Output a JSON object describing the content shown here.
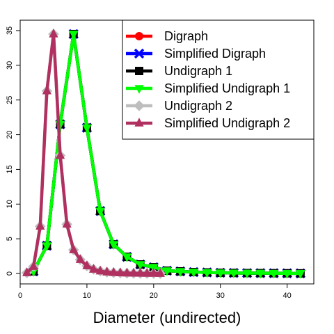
{
  "chart_data": {
    "type": "line",
    "title": "",
    "xlabel": "Diameter (undirected)",
    "ylabel": "",
    "xlim": [
      0,
      44
    ],
    "ylim": [
      -1.5,
      36.5
    ],
    "xticks": [
      0,
      10,
      20,
      30,
      40
    ],
    "yticks": [
      0,
      5,
      10,
      15,
      20,
      25,
      30,
      35
    ],
    "grid": false,
    "legend_position": "top-right",
    "series": [
      {
        "name": "Digraph",
        "color": "#ff0000",
        "marker": "circle",
        "points": [
          [
            2,
            0.3
          ],
          [
            4,
            4.0
          ],
          [
            6,
            21.5
          ],
          [
            8,
            34.5
          ],
          [
            10,
            21.0
          ],
          [
            12,
            9.0
          ],
          [
            14,
            4.2
          ],
          [
            16,
            2.4
          ],
          [
            18,
            1.3
          ],
          [
            20,
            0.9
          ],
          [
            22,
            0.4
          ],
          [
            24,
            0.3
          ],
          [
            26,
            0.2
          ],
          [
            28,
            0.15
          ],
          [
            30,
            0.1
          ],
          [
            32,
            0.08
          ],
          [
            34,
            0.06
          ],
          [
            36,
            0.05
          ],
          [
            38,
            0.04
          ],
          [
            40,
            0.03
          ],
          [
            42,
            0.02
          ]
        ]
      },
      {
        "name": "Simplified Digraph",
        "color": "#0000ff",
        "marker": "x",
        "points": [
          [
            2,
            0.3
          ],
          [
            4,
            4.0
          ],
          [
            6,
            21.5
          ],
          [
            8,
            34.5
          ],
          [
            10,
            21.0
          ],
          [
            12,
            9.0
          ],
          [
            14,
            4.2
          ],
          [
            16,
            2.4
          ],
          [
            18,
            1.3
          ],
          [
            20,
            0.9
          ],
          [
            22,
            0.4
          ],
          [
            24,
            0.3
          ],
          [
            26,
            0.2
          ],
          [
            28,
            0.15
          ],
          [
            30,
            0.1
          ],
          [
            32,
            0.08
          ],
          [
            34,
            0.06
          ],
          [
            36,
            0.05
          ],
          [
            38,
            0.04
          ],
          [
            40,
            0.03
          ],
          [
            42,
            0.02
          ]
        ]
      },
      {
        "name": "Undigraph 1",
        "color": "#000000",
        "marker": "square",
        "points": [
          [
            2,
            0.3
          ],
          [
            4,
            4.0
          ],
          [
            6,
            21.5
          ],
          [
            8,
            34.5
          ],
          [
            10,
            21.0
          ],
          [
            12,
            9.0
          ],
          [
            14,
            4.2
          ],
          [
            16,
            2.4
          ],
          [
            18,
            1.3
          ],
          [
            20,
            0.9
          ],
          [
            22,
            0.4
          ],
          [
            24,
            0.3
          ],
          [
            26,
            0.2
          ],
          [
            28,
            0.15
          ],
          [
            30,
            0.1
          ],
          [
            32,
            0.08
          ],
          [
            34,
            0.06
          ],
          [
            36,
            0.05
          ],
          [
            38,
            0.04
          ],
          [
            40,
            0.03
          ],
          [
            42,
            0.02
          ]
        ]
      },
      {
        "name": "Simplified Undigraph 1",
        "color": "#00ff00",
        "marker": "triangle-down",
        "points": [
          [
            2,
            0.3
          ],
          [
            4,
            4.0
          ],
          [
            6,
            21.5
          ],
          [
            8,
            34.5
          ],
          [
            10,
            21.0
          ],
          [
            12,
            9.0
          ],
          [
            14,
            4.2
          ],
          [
            16,
            2.4
          ],
          [
            18,
            1.3
          ],
          [
            20,
            0.9
          ],
          [
            22,
            0.4
          ],
          [
            24,
            0.3
          ],
          [
            26,
            0.2
          ],
          [
            28,
            0.15
          ],
          [
            30,
            0.1
          ],
          [
            32,
            0.08
          ],
          [
            34,
            0.06
          ],
          [
            36,
            0.05
          ],
          [
            38,
            0.04
          ],
          [
            40,
            0.03
          ],
          [
            42,
            0.02
          ]
        ]
      },
      {
        "name": "Undigraph 2",
        "color": "#bebebe",
        "marker": "diamond",
        "points": [
          [
            1,
            0.1
          ],
          [
            2,
            1.0
          ],
          [
            3,
            6.8
          ],
          [
            4,
            26.3
          ],
          [
            5,
            34.5
          ],
          [
            6,
            17.0
          ],
          [
            7,
            7.1
          ],
          [
            8,
            3.4
          ],
          [
            9,
            2.0
          ],
          [
            10,
            1.1
          ],
          [
            11,
            0.6
          ],
          [
            12,
            0.35
          ],
          [
            13,
            0.2
          ],
          [
            14,
            0.12
          ],
          [
            15,
            0.08
          ],
          [
            16,
            0.05
          ],
          [
            17,
            0.03
          ],
          [
            18,
            0.02
          ],
          [
            19,
            0.01
          ],
          [
            20,
            0.01
          ],
          [
            21,
            0.0
          ]
        ]
      },
      {
        "name": "Simplified Undigraph 2",
        "color": "#b03060",
        "marker": "triangle-up",
        "points": [
          [
            1,
            0.1
          ],
          [
            2,
            1.0
          ],
          [
            3,
            6.8
          ],
          [
            4,
            26.3
          ],
          [
            5,
            34.5
          ],
          [
            6,
            17.0
          ],
          [
            7,
            7.1
          ],
          [
            8,
            3.4
          ],
          [
            9,
            2.0
          ],
          [
            10,
            1.1
          ],
          [
            11,
            0.6
          ],
          [
            12,
            0.35
          ],
          [
            13,
            0.2
          ],
          [
            14,
            0.12
          ],
          [
            15,
            0.08
          ],
          [
            16,
            0.05
          ],
          [
            17,
            0.03
          ],
          [
            18,
            0.02
          ],
          [
            19,
            0.01
          ],
          [
            20,
            0.01
          ],
          [
            21,
            0.0
          ]
        ]
      }
    ]
  }
}
